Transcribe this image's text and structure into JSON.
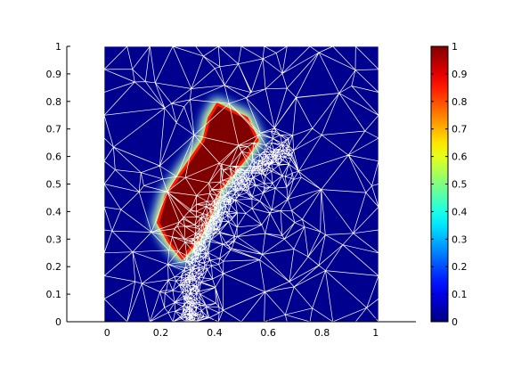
{
  "chart_data": {
    "type": "heatmap",
    "title": "",
    "xlabel": "",
    "ylabel": "",
    "xlim": [
      -0.15,
      1.15
    ],
    "ylim": [
      0,
      1
    ],
    "x_ticks": [
      "0",
      "0.2",
      "0.4",
      "0.6",
      "0.8",
      "1"
    ],
    "y_ticks": [
      "0",
      "0.1",
      "0.2",
      "0.3",
      "0.4",
      "0.5",
      "0.6",
      "0.7",
      "0.8",
      "0.9",
      "1"
    ],
    "grid": false,
    "colormap": "jet",
    "colorbar": {
      "range": [
        0,
        1
      ],
      "ticks": [
        "0",
        "0.1",
        "0.2",
        "0.3",
        "0.4",
        "0.5",
        "0.6",
        "0.7",
        "0.8",
        "0.9",
        "1"
      ]
    },
    "background_value": 0,
    "regions": [
      {
        "value": 1,
        "polygon": [
          [
            0.41,
            0.79
          ],
          [
            0.52,
            0.74
          ],
          [
            0.56,
            0.66
          ],
          [
            0.52,
            0.6
          ],
          [
            0.47,
            0.54
          ],
          [
            0.42,
            0.48
          ],
          [
            0.39,
            0.4
          ],
          [
            0.34,
            0.3
          ],
          [
            0.28,
            0.23
          ],
          [
            0.23,
            0.29
          ],
          [
            0.19,
            0.36
          ],
          [
            0.22,
            0.46
          ],
          [
            0.29,
            0.56
          ],
          [
            0.36,
            0.66
          ],
          [
            0.38,
            0.74
          ]
        ]
      }
    ],
    "mesh": {
      "line_color": "#ffffff",
      "dense_band": {
        "center": [
          0.95,
          0.05
        ],
        "radius": 0.64,
        "angle_range_deg": [
          115,
          185
        ]
      }
    },
    "colors": {
      "axis": "#000000",
      "background": "#ffffff",
      "low": "#00008f",
      "high": "#800000"
    }
  }
}
